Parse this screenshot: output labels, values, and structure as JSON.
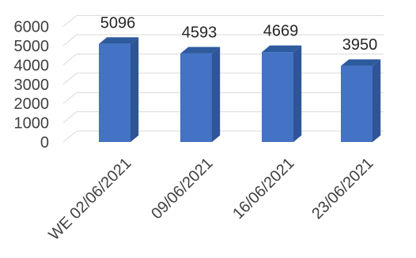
{
  "chart_data": {
    "type": "bar",
    "style": "3d-column",
    "categories": [
      "WE 02/06/2021",
      "09/06/2021",
      "16/06/2021",
      "23/06/2021"
    ],
    "values": [
      5096,
      4593,
      4669,
      3950
    ],
    "data_labels": [
      "5096",
      "4593",
      "4669",
      "3950"
    ],
    "y_ticks": [
      "0",
      "1000",
      "2000",
      "3000",
      "4000",
      "5000",
      "6000"
    ],
    "ylim": [
      0,
      6000
    ],
    "title": "",
    "xlabel": "",
    "ylabel": "",
    "grid": true,
    "legend": "none",
    "colors": {
      "bar_front": "#4472c4",
      "bar_side": "#2f5597",
      "bar_top": "#2e5a9e",
      "grid": "#d9d9d9",
      "text": "#404040"
    }
  }
}
